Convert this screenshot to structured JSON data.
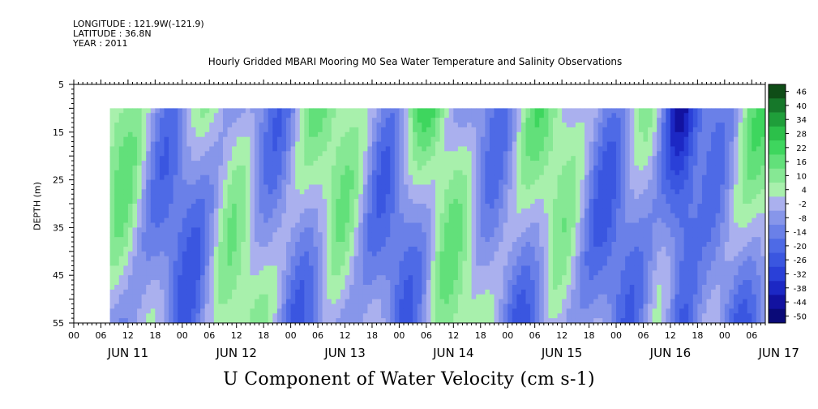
{
  "header": {
    "longitude": "LONGITUDE : 121.9W(-121.9)",
    "latitude": "LATITUDE : 36.8N",
    "year": "YEAR : 2011"
  },
  "chart_data": {
    "type": "heatmap",
    "title": "Hourly Gridded MBARI Mooring M0 Sea Water Temperature and Salinity Observations",
    "xlabel": "U Component of Water Velocity (cm s-1)",
    "ylabel": "DEPTH (m)",
    "y_range": [
      5,
      55
    ],
    "y_inverted": true,
    "y_ticks": [
      5,
      15,
      25,
      35,
      45,
      55
    ],
    "x_range_hours": [
      "2011-06-11 00:00",
      "2011-06-17 09:00"
    ],
    "x_hour_ticks": [
      "00",
      "06",
      "12",
      "18",
      "00",
      "06",
      "12",
      "18",
      "00",
      "06",
      "12",
      "18",
      "00",
      "06",
      "12",
      "18",
      "00",
      "06",
      "12",
      "18",
      "00",
      "06",
      "12",
      "18",
      "00",
      "06"
    ],
    "x_day_labels": [
      "JUN 11",
      "JUN 12",
      "JUN 13",
      "JUN 14",
      "JUN 15",
      "JUN 16",
      "JUN 17"
    ],
    "data_depth_range": [
      10,
      55
    ],
    "data_time_start": "2011-06-11 08:00",
    "colorbar_levels": [
      "46",
      "40",
      "34",
      "28",
      "22",
      "16",
      "10",
      "4",
      "-2",
      "-8",
      "-14",
      "-20",
      "-26",
      "-32",
      "-38",
      "-44",
      "-50"
    ],
    "colorbar_range": [
      -50,
      52
    ],
    "colors": {
      "positive_strong": "#0f4d17",
      "positive": "#34d65a",
      "positive_light": "#9cf0a4",
      "negative_light": "#b4b8ee",
      "negative": "#7a86e8",
      "negative_strong": "#0a0a78"
    },
    "u_velocity_bands": [
      {
        "day": "JUN 11",
        "pattern": "mostly positive near surface, negative lower depths"
      },
      {
        "day": "JUN 16",
        "pattern": "strong negative near 13-17h"
      }
    ]
  }
}
